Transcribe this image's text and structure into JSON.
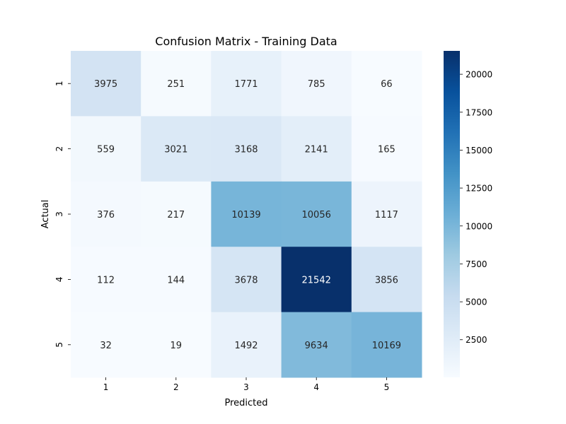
{
  "chart_data": {
    "type": "heatmap",
    "title": "Confusion Matrix - Training Data",
    "xlabel": "Predicted",
    "ylabel": "Actual",
    "x_categories": [
      "1",
      "2",
      "3",
      "4",
      "5"
    ],
    "y_categories": [
      "1",
      "2",
      "3",
      "4",
      "5"
    ],
    "values": [
      [
        3975,
        251,
        1771,
        785,
        66
      ],
      [
        559,
        3021,
        3168,
        2141,
        165
      ],
      [
        376,
        217,
        10139,
        10056,
        1117
      ],
      [
        112,
        144,
        3678,
        21542,
        3856
      ],
      [
        32,
        19,
        1492,
        9634,
        10169
      ]
    ],
    "colormap": "Blues",
    "colormap_stops": [
      "#f7fbff",
      "#deebf7",
      "#c6dbef",
      "#9ecae1",
      "#6baed6",
      "#4292c6",
      "#2171b5",
      "#08519c",
      "#08306b"
    ],
    "value_range": [
      19,
      21542
    ],
    "colorbar_ticks": [
      "2500",
      "5000",
      "7500",
      "10000",
      "12500",
      "15000",
      "17500",
      "20000"
    ],
    "annotation_colors": {
      "dark_background": "#ffffff",
      "light_background": "#262626"
    },
    "grid": false
  }
}
